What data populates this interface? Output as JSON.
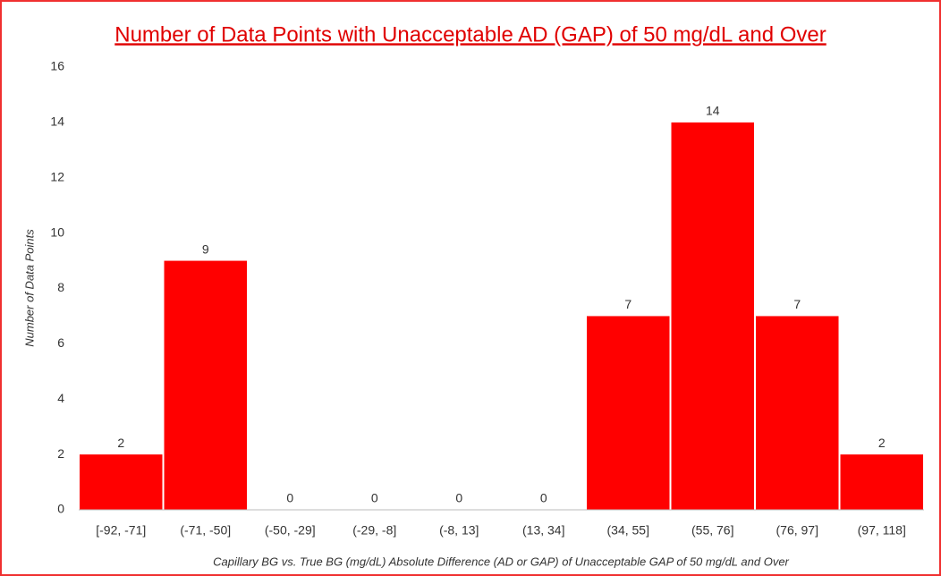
{
  "chart_data": {
    "type": "bar",
    "title": "Number of Data Points with Unacceptable AD (GAP) of 50 mg/dL and Over",
    "x_label": "Capillary BG vs. True BG (mg/dL) Absolute Difference (AD or GAP) of Unacceptable GAP of 50 mg/dL and Over",
    "y_label": "Number of Data Points",
    "categories": [
      "[-92, -71]",
      "(-71, -50]",
      "(-50, -29]",
      "(-29, -8]",
      "(-8, 13]",
      "(13, 34]",
      "(34, 55]",
      "(55, 76]",
      "(76, 97]",
      "(97, 118]"
    ],
    "values": [
      2,
      9,
      0,
      0,
      0,
      0,
      7,
      14,
      7,
      2
    ],
    "color": "#ff0000",
    "ylim": [
      0,
      16
    ],
    "yticks": [
      0,
      2,
      4,
      6,
      8,
      10,
      12,
      14,
      16
    ],
    "grid": false
  }
}
